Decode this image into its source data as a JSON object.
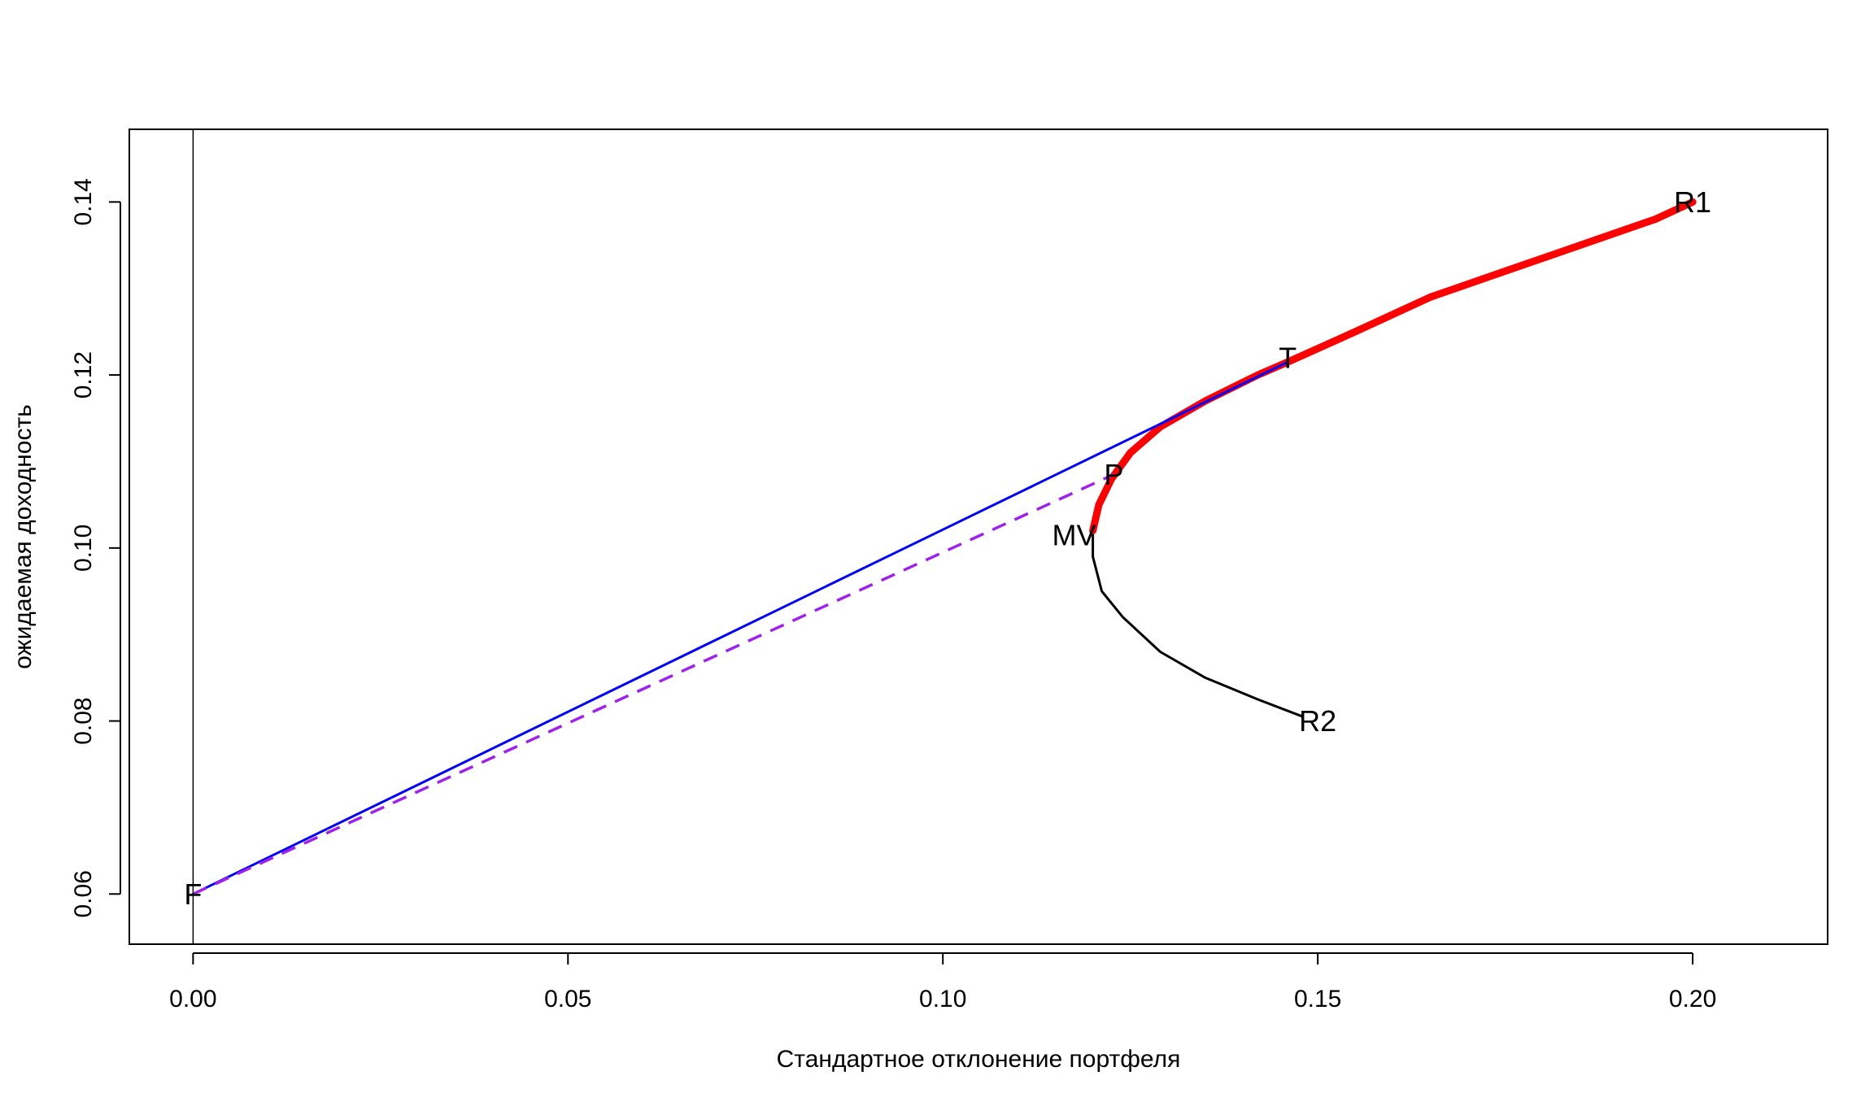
{
  "chart_data": {
    "type": "line",
    "title": "",
    "xlabel": "Стандартное отклонение портфеля",
    "ylabel": "ожидаемая доходность",
    "xlim": [
      -0.0085,
      0.218
    ],
    "ylim": [
      0.0542,
      0.1484
    ],
    "x_ticks": [
      "0.00",
      "0.05",
      "0.10",
      "0.15",
      "0.20"
    ],
    "x_tick_values": [
      0.0,
      0.05,
      0.1,
      0.15,
      0.2
    ],
    "y_ticks": [
      "0.06",
      "0.08",
      "0.10",
      "0.12",
      "0.14"
    ],
    "y_tick_values": [
      0.06,
      0.08,
      0.1,
      0.12,
      0.14
    ],
    "grid": false,
    "series": [
      {
        "color": "#000000",
        "style": "solid",
        "points": [
          [
            0.12,
            0.102
          ],
          [
            0.12,
            0.099
          ],
          [
            0.1212,
            0.095
          ],
          [
            0.124,
            0.092
          ],
          [
            0.129,
            0.088
          ],
          [
            0.135,
            0.085
          ],
          [
            0.142,
            0.0825
          ],
          [
            0.148,
            0.0805
          ]
        ]
      },
      {
        "color": "#ff0000",
        "style": "solid-thick",
        "points": [
          [
            0.12,
            0.102
          ],
          [
            0.1208,
            0.105
          ],
          [
            0.1225,
            0.108
          ],
          [
            0.125,
            0.111
          ],
          [
            0.129,
            0.114
          ],
          [
            0.135,
            0.117
          ],
          [
            0.142,
            0.12
          ],
          [
            0.146,
            0.1215
          ],
          [
            0.155,
            0.125
          ],
          [
            0.165,
            0.129
          ],
          [
            0.175,
            0.132
          ],
          [
            0.185,
            0.135
          ],
          [
            0.195,
            0.138
          ],
          [
            0.2,
            0.14
          ]
        ]
      },
      {
        "color": "#0000ff",
        "style": "solid",
        "points": [
          [
            0.0,
            0.06
          ],
          [
            0.146,
            0.1215
          ]
        ]
      },
      {
        "color": "#a020f0",
        "style": "dashed",
        "points": [
          [
            0.0,
            0.06
          ],
          [
            0.1228,
            0.1085
          ]
        ]
      },
      {
        "color": "#000000",
        "style": "thin",
        "points": [
          [
            0.0,
            0.0542
          ],
          [
            0.0,
            0.1484
          ]
        ]
      }
    ],
    "annotations": [
      {
        "label": "F",
        "x": 0.0,
        "y": 0.06
      },
      {
        "label": "MV",
        "x": 0.1175,
        "y": 0.1015
      },
      {
        "label": "P",
        "x": 0.1228,
        "y": 0.1085
      },
      {
        "label": "T",
        "x": 0.146,
        "y": 0.122
      },
      {
        "label": "R1",
        "x": 0.2,
        "y": 0.14
      },
      {
        "label": "R2",
        "x": 0.15,
        "y": 0.08
      }
    ]
  }
}
